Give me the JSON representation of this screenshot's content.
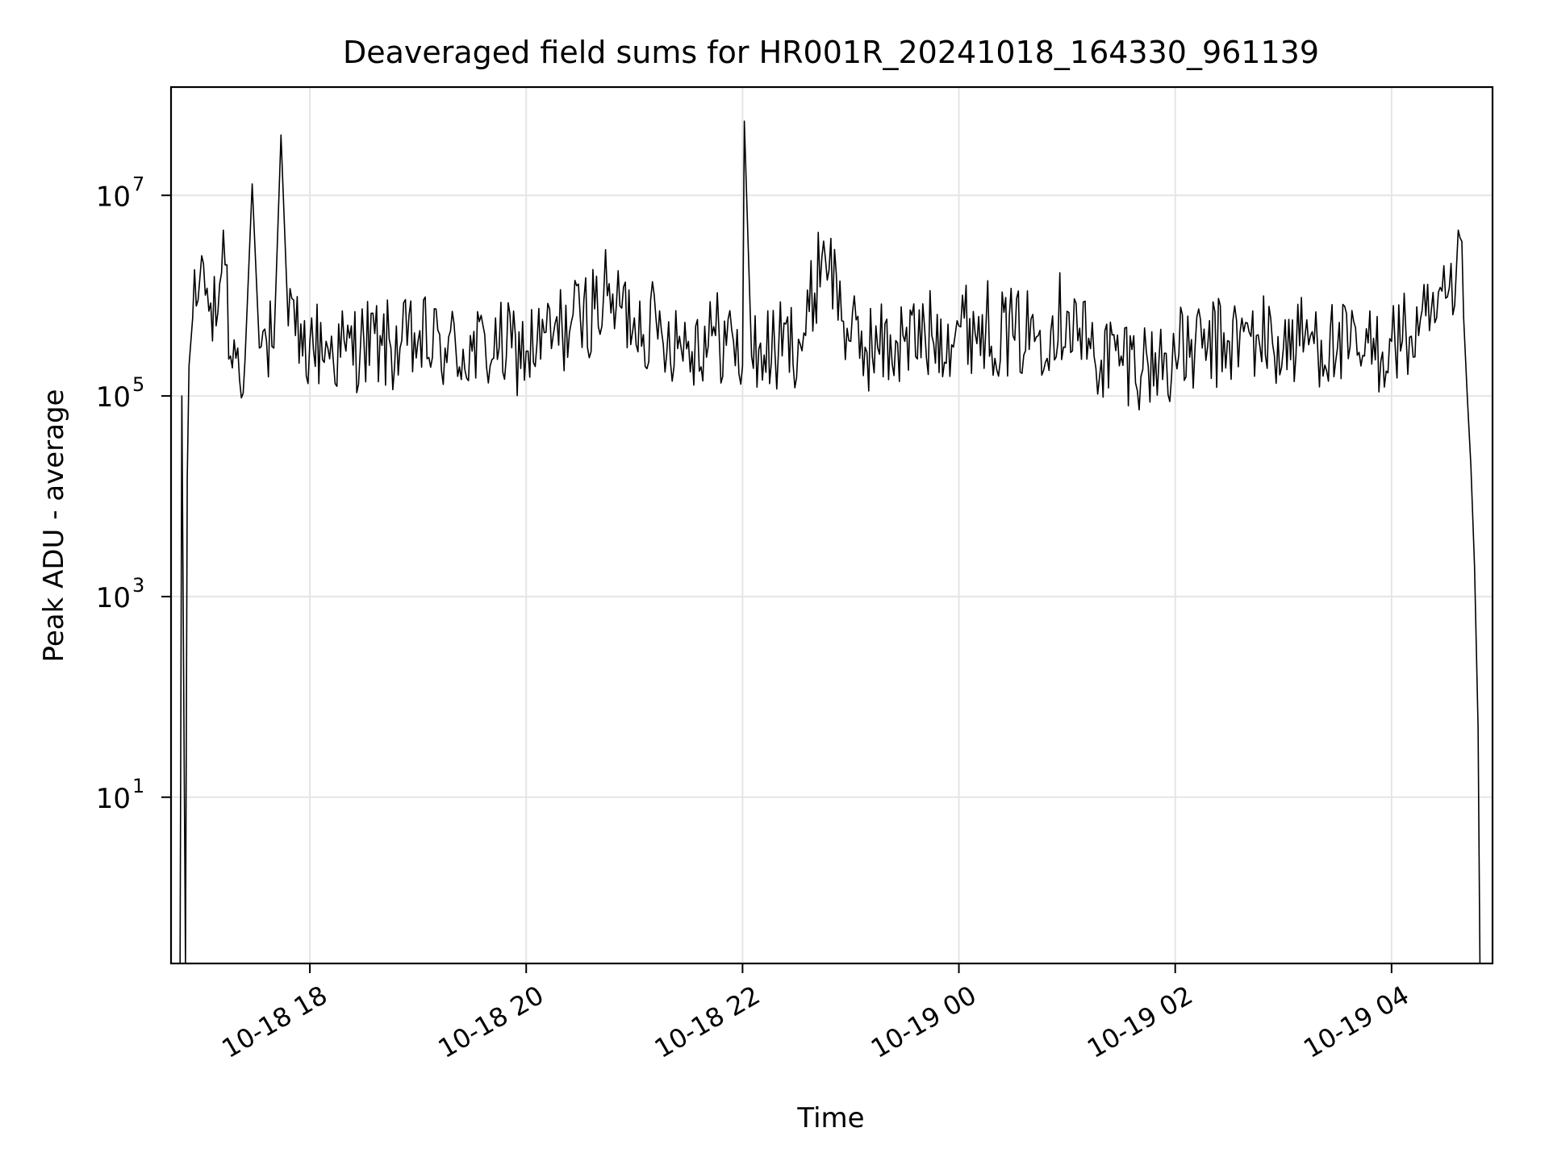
{
  "chart_data": {
    "type": "line",
    "title": "Deaveraged field sums for HR001R_20241018_164330_961139",
    "xlabel": "Time",
    "ylabel": "Peak ADU - average",
    "yscale": "log",
    "ylim": [
      0.22,
      120000000.0
    ],
    "xlim": [
      "2024-10-18 16:43",
      "2024-10-19 04:56"
    ],
    "grid": true,
    "legend": "none",
    "colors": {
      "line": "#000000",
      "grid": "#e5e5e5",
      "axes": "#000000",
      "background": "#ffffff"
    },
    "y_ticks": [
      {
        "base": "10",
        "exp": "1",
        "value": 10
      },
      {
        "base": "10",
        "exp": "3",
        "value": 1000
      },
      {
        "base": "10",
        "exp": "5",
        "value": 100000
      },
      {
        "base": "10",
        "exp": "7",
        "value": 10000000
      }
    ],
    "x_ticks": [
      {
        "label": "10-18 18",
        "value": "2024-10-18 18:00"
      },
      {
        "label": "10-18 20",
        "value": "2024-10-18 20:00"
      },
      {
        "label": "10-18 22",
        "value": "2024-10-18 22:00"
      },
      {
        "label": "10-19 00",
        "value": "2024-10-19 00:00"
      },
      {
        "label": "10-19 02",
        "value": "2024-10-19 02:00"
      },
      {
        "label": "10-19 04",
        "value": "2024-10-19 04:00"
      }
    ],
    "series": [
      {
        "x": [
          "2024-10-18 16:48",
          "2024-10-18 16:49",
          "2024-10-18 16:51",
          "2024-10-18 16:52",
          "2024-10-18 16:53",
          "2024-10-18 16:55",
          "2024-10-18 16:58",
          "2024-10-18 17:00",
          "2024-10-18 17:04",
          "2024-10-18 17:08",
          "2024-10-18 17:12",
          "2024-10-18 17:16",
          "2024-10-18 17:20",
          "2024-10-18 17:24",
          "2024-10-18 17:28",
          "2024-10-18 17:32",
          "2024-10-18 17:36",
          "2024-10-18 17:40",
          "2024-10-18 17:44",
          "2024-10-18 17:48",
          "2024-10-18 17:52",
          "2024-10-18 17:56",
          "2024-10-18 18:00",
          "2024-10-18 18:10",
          "2024-10-18 18:20",
          "2024-10-18 18:30",
          "2024-10-18 18:40",
          "2024-10-18 18:50",
          "2024-10-18 19:00",
          "2024-10-18 19:15",
          "2024-10-18 19:30",
          "2024-10-18 19:45",
          "2024-10-18 20:00",
          "2024-10-18 20:15",
          "2024-10-18 20:30",
          "2024-10-18 20:45",
          "2024-10-18 20:50",
          "2024-10-18 21:00",
          "2024-10-18 21:15",
          "2024-10-18 21:30",
          "2024-10-18 21:45",
          "2024-10-18 21:55",
          "2024-10-18 22:00",
          "2024-10-18 22:01",
          "2024-10-18 22:05",
          "2024-10-18 22:20",
          "2024-10-18 22:35",
          "2024-10-18 22:45",
          "2024-10-18 23:00",
          "2024-10-18 23:15",
          "2024-10-18 23:30",
          "2024-10-18 23:45",
          "2024-10-19 00:00",
          "2024-10-19 00:15",
          "2024-10-19 00:30",
          "2024-10-19 00:45",
          "2024-10-19 01:00",
          "2024-10-19 01:15",
          "2024-10-19 01:30",
          "2024-10-19 01:45",
          "2024-10-19 02:00",
          "2024-10-19 02:15",
          "2024-10-19 02:30",
          "2024-10-19 02:45",
          "2024-10-19 03:00",
          "2024-10-19 03:15",
          "2024-10-19 03:30",
          "2024-10-19 03:45",
          "2024-10-19 04:00",
          "2024-10-19 04:15",
          "2024-10-19 04:25",
          "2024-10-19 04:35",
          "2024-10-19 04:37",
          "2024-10-19 04:40",
          "2024-10-19 04:42",
          "2024-10-19 04:44",
          "2024-10-19 04:46",
          "2024-10-19 04:48",
          "2024-10-19 04:49"
        ],
        "y": [
          0.2,
          100000,
          0.2,
          15000,
          200000,
          600000,
          900000,
          2500000,
          700000,
          500000,
          4500000,
          250000,
          300000,
          220000,
          13000000,
          300000,
          350000,
          300000,
          40000000,
          500000,
          400000,
          250000,
          350000,
          300000,
          280000,
          350000,
          320000,
          300000,
          350000,
          300000,
          280000,
          300000,
          280000,
          400000,
          600000,
          1000000,
          800000,
          600000,
          450000,
          350000,
          400000,
          350000,
          200000,
          55000000,
          250000,
          300000,
          400000,
          3500000,
          350000,
          300000,
          350000,
          400000,
          500000,
          500000,
          400000,
          450000,
          700000,
          250000,
          250000,
          200000,
          250000,
          300000,
          350000,
          400000,
          300000,
          400000,
          300000,
          250000,
          350000,
          400000,
          600000,
          800000,
          4500000,
          600000,
          100000,
          20000,
          2000,
          50,
          0.2
        ]
      }
    ]
  }
}
